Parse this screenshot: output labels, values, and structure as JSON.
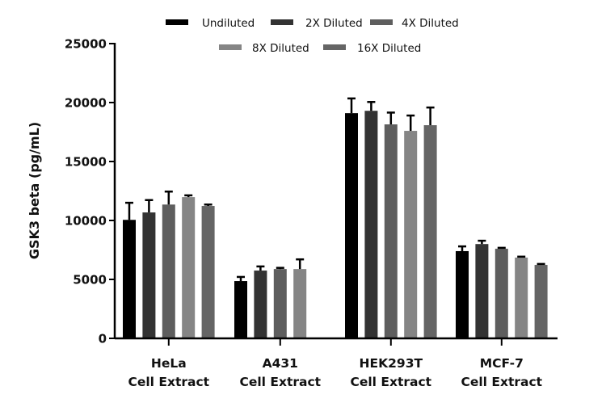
{
  "chart_data": {
    "type": "bar",
    "title": "",
    "xlabel": "",
    "ylabel": "GSK3 beta (pg/mL)",
    "ylim": [
      0,
      25000
    ],
    "yticks": [
      0,
      5000,
      10000,
      15000,
      20000,
      25000
    ],
    "ytick_labels": [
      "0",
      "5000",
      "10000",
      "15000",
      "20000",
      "25000"
    ],
    "grid": false,
    "legend_position": "top-center",
    "categories": [
      {
        "line1": "HeLa",
        "line2": "Cell Extract"
      },
      {
        "line1": "A431",
        "line2": "Cell Extract"
      },
      {
        "line1": "HEK293T",
        "line2": "Cell Extract"
      },
      {
        "line1": "MCF-7",
        "line2": "Cell Extract"
      }
    ],
    "series": [
      {
        "name": "Undiluted",
        "color": "#000000",
        "values": [
          10050,
          4860,
          19100,
          7400
        ],
        "errors": [
          1450,
          350,
          1250,
          400
        ]
      },
      {
        "name": "2X Diluted",
        "color": "#333333",
        "values": [
          10680,
          5750,
          19300,
          8000
        ],
        "errors": [
          1050,
          350,
          750,
          280
        ]
      },
      {
        "name": "4X Diluted",
        "color": "#5e5e5e",
        "values": [
          11350,
          5880,
          18150,
          7600
        ],
        "errors": [
          1100,
          100,
          1000,
          80
        ]
      },
      {
        "name": "8X Diluted",
        "color": "#858585",
        "values": [
          11980,
          5880,
          17600,
          6850
        ],
        "errors": [
          150,
          820,
          1300,
          80
        ]
      },
      {
        "name": "16X Diluted",
        "color": "#656565",
        "values": [
          11230,
          null,
          18080,
          6230
        ],
        "errors": [
          120,
          null,
          1500,
          80
        ]
      }
    ]
  }
}
